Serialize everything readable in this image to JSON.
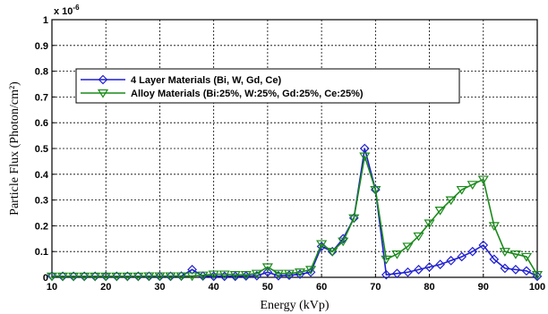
{
  "chart_data": {
    "type": "line",
    "xlabel": "Energy (kVp)",
    "ylabel": "Particle Flux (Photon/cm²)",
    "multiplier_label": "x 10",
    "multiplier_exp": "-6",
    "xlim": [
      10,
      100
    ],
    "ylim": [
      0,
      1
    ],
    "xticks": [
      10,
      20,
      30,
      40,
      50,
      60,
      70,
      80,
      90,
      100
    ],
    "yticks": [
      0,
      0.1,
      0.2,
      0.3,
      0.4,
      0.5,
      0.6,
      0.7,
      0.8,
      0.9,
      1
    ],
    "ytick_labels": [
      "0",
      "0.1",
      "0.2",
      "0.3",
      "0.4",
      "0.5",
      "0.6",
      "0.7",
      "0.8",
      "0.9",
      "1"
    ],
    "grid": true,
    "legend_position": "upper-left",
    "series": [
      {
        "name": "4 Layer Materials (Bi, W, Gd, Ce)",
        "color": "#1f1fd0",
        "marker": "diamond",
        "x": [
          10,
          12,
          14,
          16,
          18,
          20,
          22,
          24,
          26,
          28,
          30,
          32,
          34,
          36,
          38,
          40,
          42,
          44,
          46,
          48,
          50,
          52,
          54,
          56,
          58,
          60,
          62,
          64,
          66,
          68,
          70,
          72,
          74,
          76,
          78,
          80,
          82,
          84,
          86,
          88,
          90,
          92,
          94,
          96,
          98,
          100
        ],
        "y": [
          0.005,
          0.004,
          0.004,
          0.004,
          0.004,
          0.004,
          0.004,
          0.004,
          0.004,
          0.004,
          0.004,
          0.004,
          0.005,
          0.03,
          0.005,
          0.004,
          0.004,
          0.004,
          0.005,
          0.006,
          0.02,
          0.006,
          0.008,
          0.012,
          0.02,
          0.12,
          0.1,
          0.15,
          0.23,
          0.5,
          0.34,
          0.01,
          0.015,
          0.02,
          0.03,
          0.04,
          0.05,
          0.065,
          0.08,
          0.1,
          0.125,
          0.07,
          0.035,
          0.03,
          0.025,
          0.004
        ]
      },
      {
        "name": "Alloy Materials (Bi:25%, W:25%, Gd:25%, Ce:25%)",
        "color": "#1a8a1a",
        "marker": "triangle-down",
        "x": [
          10,
          12,
          14,
          16,
          18,
          20,
          22,
          24,
          26,
          28,
          30,
          32,
          34,
          36,
          38,
          40,
          42,
          44,
          46,
          48,
          50,
          52,
          54,
          56,
          58,
          60,
          62,
          64,
          66,
          68,
          70,
          72,
          74,
          76,
          78,
          80,
          82,
          84,
          86,
          88,
          90,
          92,
          94,
          96,
          98,
          100
        ],
        "y": [
          0.004,
          0.004,
          0.004,
          0.004,
          0.004,
          0.004,
          0.004,
          0.004,
          0.004,
          0.005,
          0.005,
          0.005,
          0.005,
          0.005,
          0.008,
          0.012,
          0.012,
          0.01,
          0.01,
          0.015,
          0.04,
          0.015,
          0.015,
          0.02,
          0.03,
          0.13,
          0.1,
          0.14,
          0.23,
          0.47,
          0.34,
          0.07,
          0.09,
          0.12,
          0.16,
          0.21,
          0.26,
          0.3,
          0.34,
          0.36,
          0.38,
          0.2,
          0.1,
          0.09,
          0.08,
          0.01
        ]
      }
    ]
  }
}
